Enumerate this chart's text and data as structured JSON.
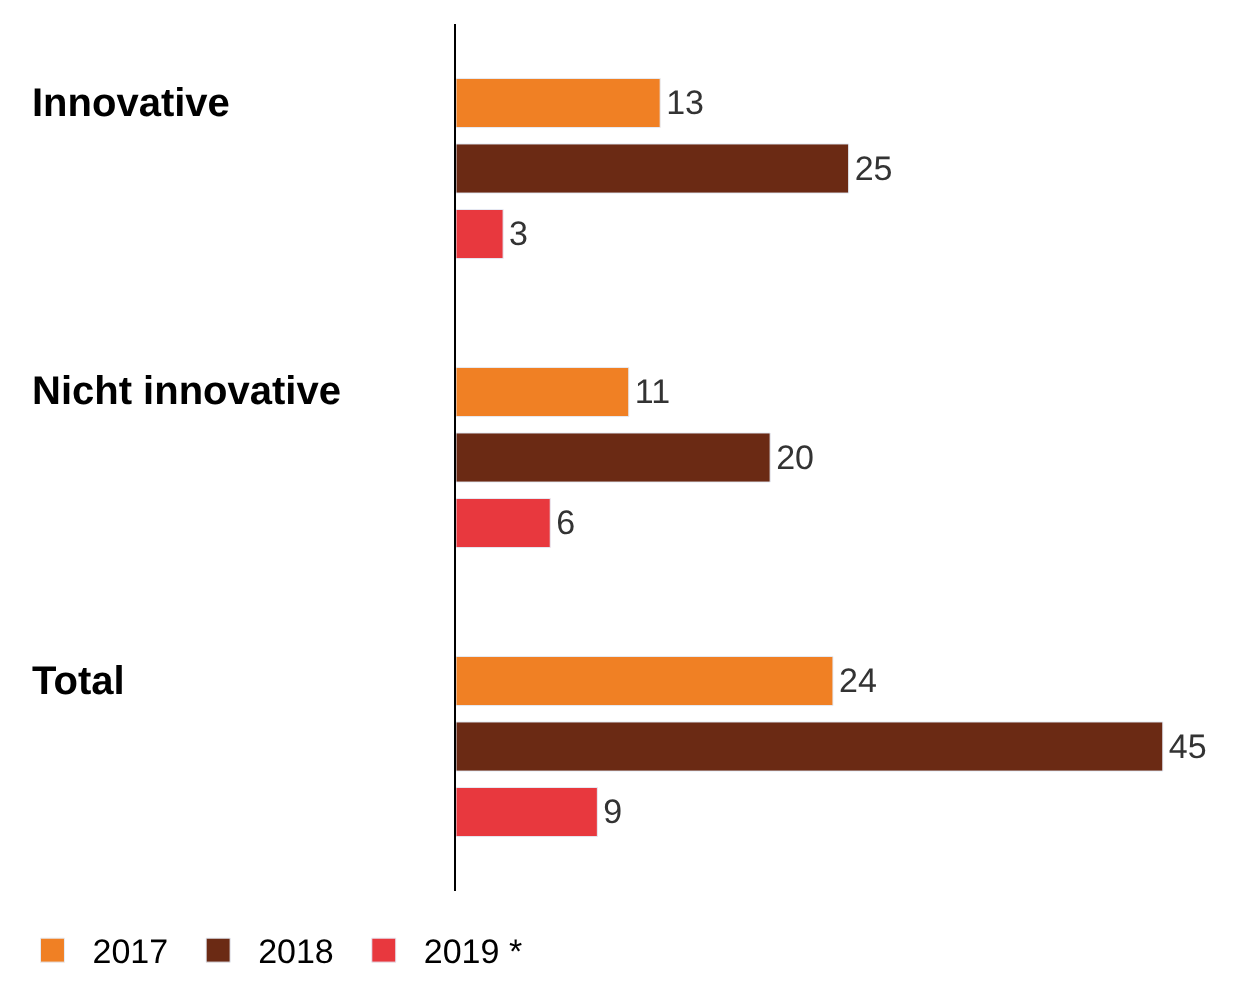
{
  "chart_data": {
    "type": "bar",
    "orientation": "horizontal",
    "categories": [
      "Innovative",
      "Nicht innovative",
      "Total"
    ],
    "series": [
      {
        "name": "2017",
        "color": "#f08024",
        "values": [
          13,
          11,
          24
        ]
      },
      {
        "name": "2018",
        "color": "#6b2a14",
        "values": [
          25,
          20,
          45
        ]
      },
      {
        "name": "2019 *",
        "color": "#e8383e",
        "values": [
          3,
          6,
          9
        ]
      }
    ],
    "data_labels": true,
    "tick_labels": "y",
    "legend": "bottom left"
  }
}
